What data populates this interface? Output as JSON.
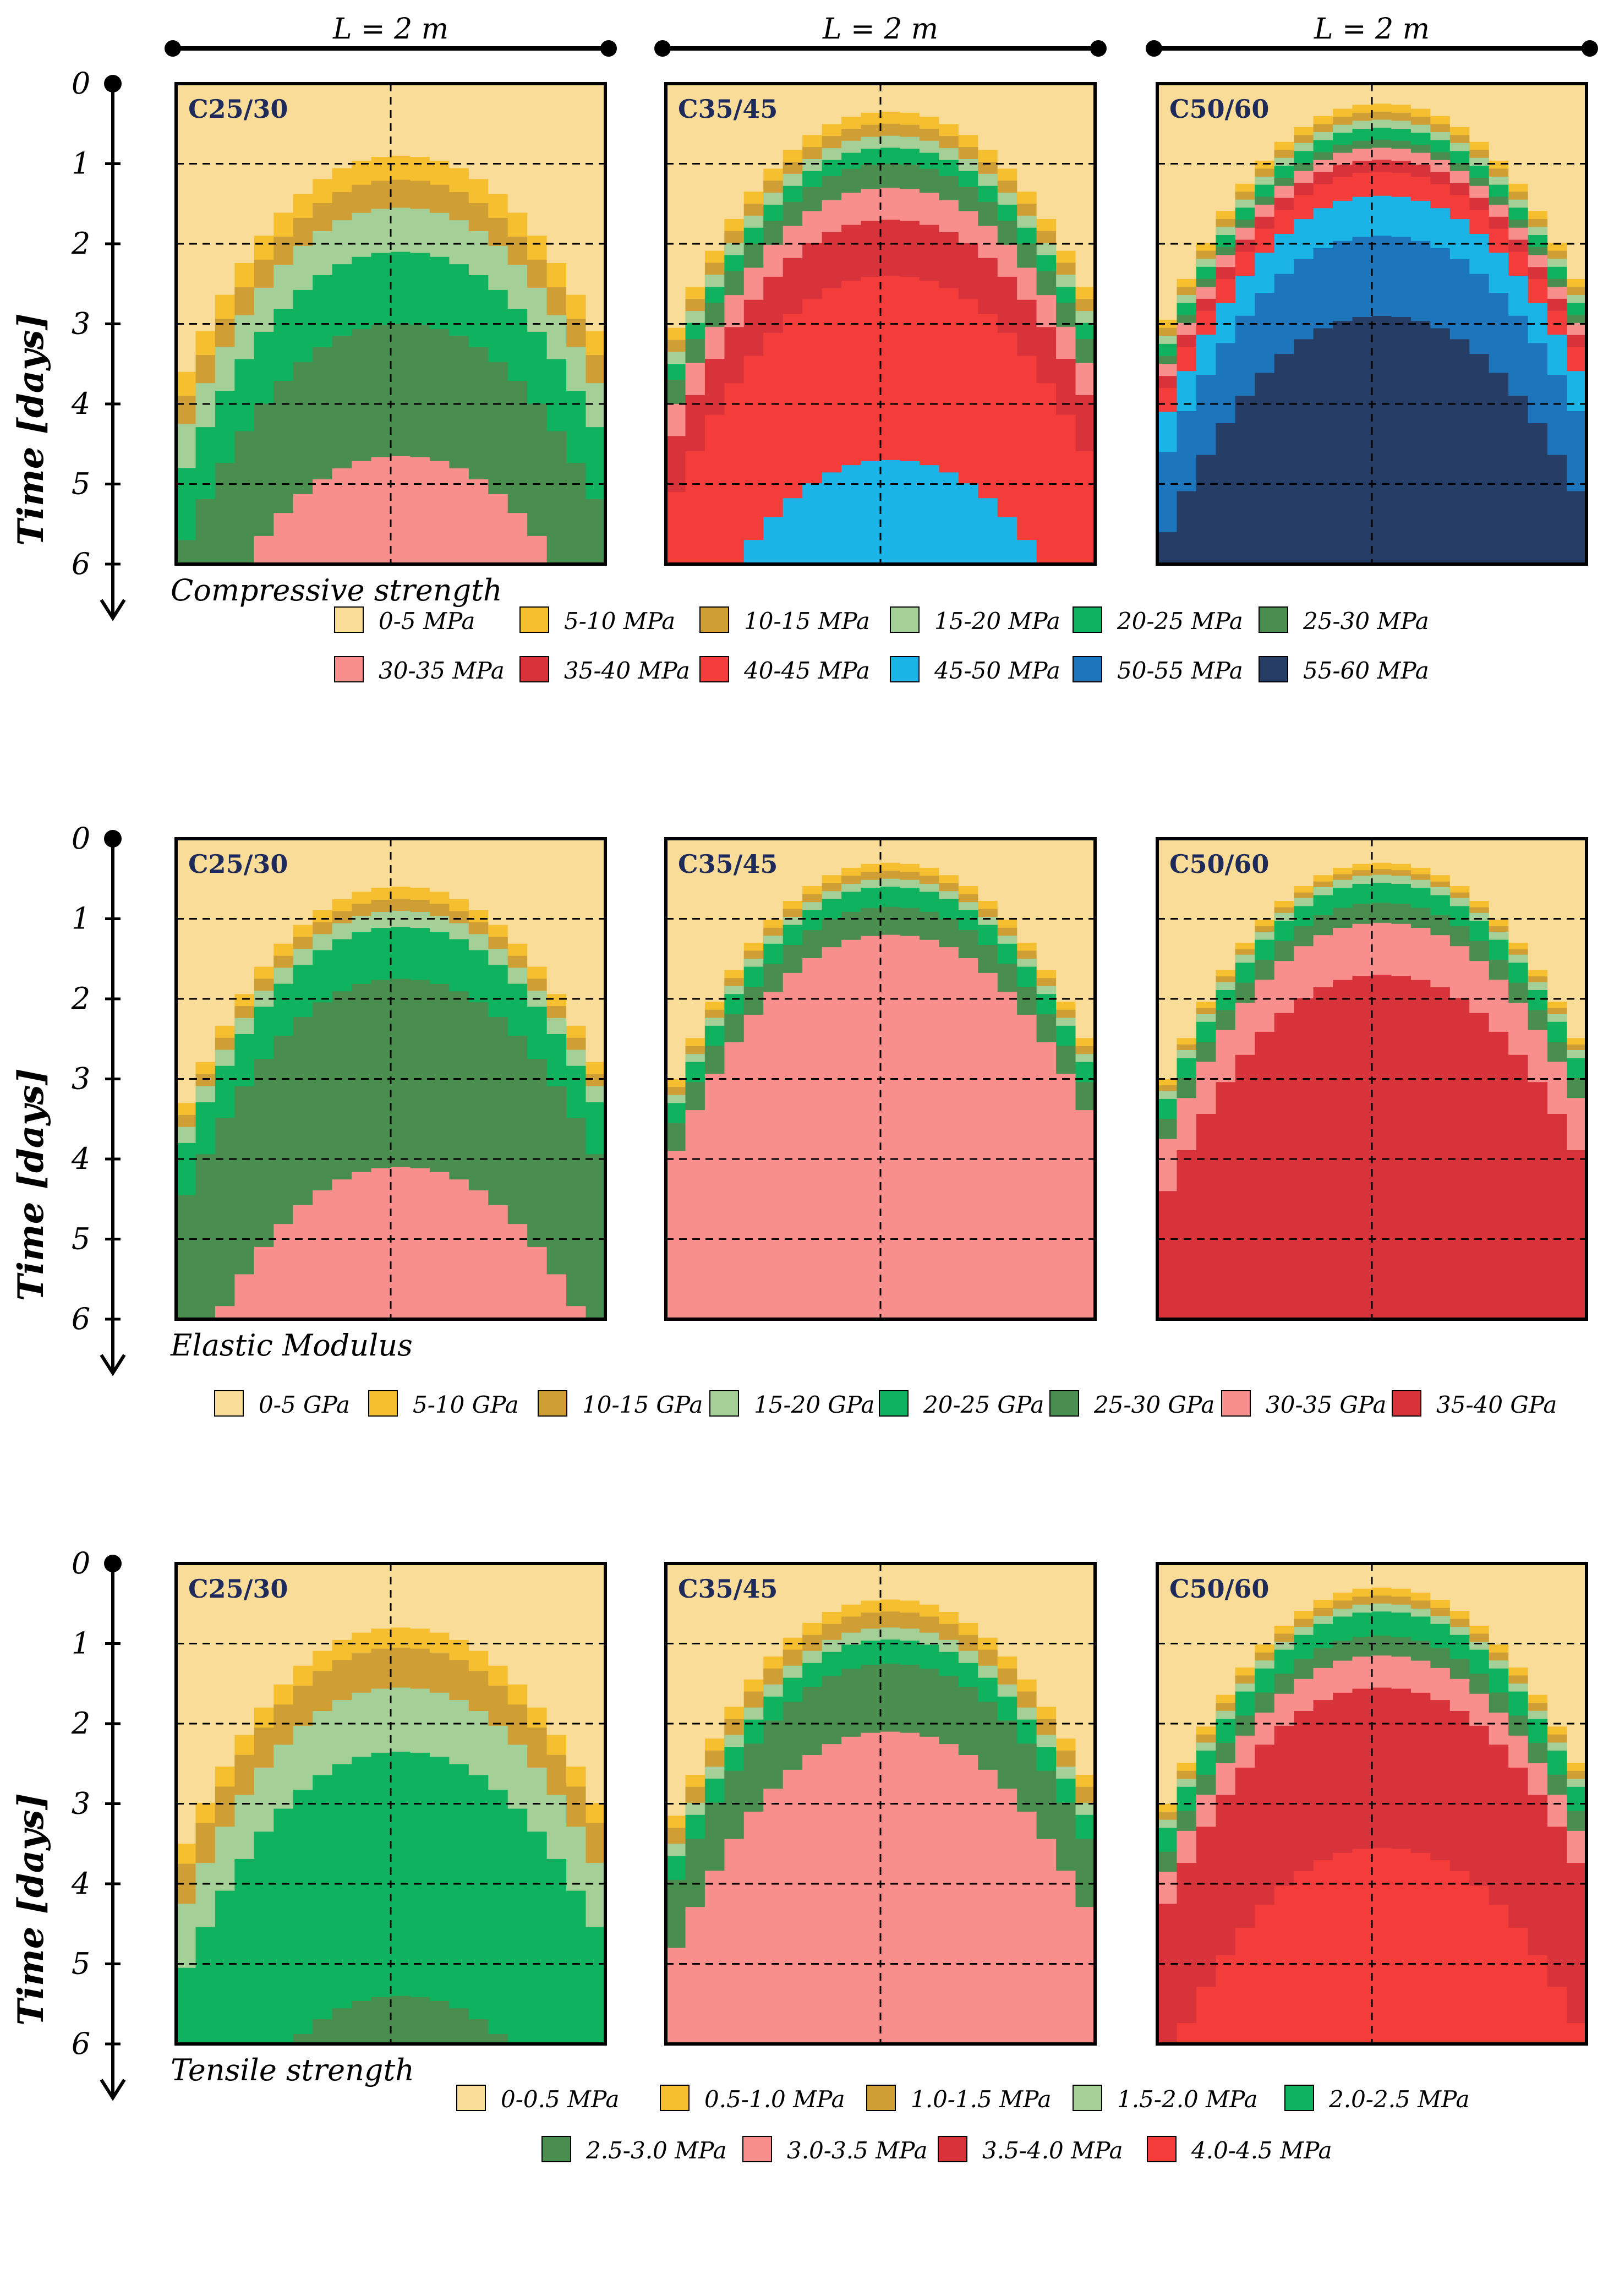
{
  "figure": {
    "length_label": "L = 2 m",
    "time_axis_title": "Time [days]",
    "time_ticks": [
      "0",
      "1",
      "2",
      "3",
      "4",
      "5",
      "6"
    ],
    "palette": {
      "p_cream": "#f9dc98",
      "p_yellow": "#f5bf2f",
      "p_gold": "#cf9f35",
      "p_lgreen": "#a4cf96",
      "p_green": "#0fb25e",
      "p_dgreen": "#4a8e4f",
      "p_pink": "#f88f8d",
      "p_dred": "#d8333a",
      "p_red": "#f43c3a",
      "p_lblue": "#1ab5e6",
      "p_mblue": "#1d76bb",
      "p_navy": "#263d66"
    },
    "rows": [
      {
        "title": "Compressive strength",
        "panels": [
          {
            "label": "C25/30",
            "layers": [
              {
                "color": "p_yellow",
                "start": 0.9
              },
              {
                "color": "p_gold",
                "start": 1.2
              },
              {
                "color": "p_lgreen",
                "start": 1.55
              },
              {
                "color": "p_green",
                "start": 2.1
              },
              {
                "color": "p_dgreen",
                "start": 3.0
              },
              {
                "color": "p_pink",
                "start": 4.65
              }
            ]
          },
          {
            "label": "C35/45",
            "layers": [
              {
                "color": "p_yellow",
                "start": 0.35
              },
              {
                "color": "p_gold",
                "start": 0.5
              },
              {
                "color": "p_lgreen",
                "start": 0.65
              },
              {
                "color": "p_green",
                "start": 0.8
              },
              {
                "color": "p_dgreen",
                "start": 1.0
              },
              {
                "color": "p_pink",
                "start": 1.3
              },
              {
                "color": "p_dred",
                "start": 1.7
              },
              {
                "color": "p_red",
                "start": 2.4
              },
              {
                "color": "p_lblue",
                "start": 4.7
              }
            ]
          },
          {
            "label": "C50/60",
            "layers": [
              {
                "color": "p_yellow",
                "start": 0.25
              },
              {
                "color": "p_gold",
                "start": 0.35
              },
              {
                "color": "p_lgreen",
                "start": 0.45
              },
              {
                "color": "p_green",
                "start": 0.55
              },
              {
                "color": "p_dgreen",
                "start": 0.7
              },
              {
                "color": "p_pink",
                "start": 0.8
              },
              {
                "color": "p_dred",
                "start": 0.95
              },
              {
                "color": "p_red",
                "start": 1.1
              },
              {
                "color": "p_lblue",
                "start": 1.4
              },
              {
                "color": "p_mblue",
                "start": 1.9
              },
              {
                "color": "p_navy",
                "start": 2.9
              }
            ]
          }
        ],
        "legend": {
          "rows": [
            [
              {
                "color": "p_cream",
                "label": "0-5 MPa"
              },
              {
                "color": "p_yellow",
                "label": "5-10 MPa"
              },
              {
                "color": "p_gold",
                "label": "10-15 MPa"
              },
              {
                "color": "p_lgreen",
                "label": "15-20 MPa"
              },
              {
                "color": "p_green",
                "label": "20-25 MPa"
              },
              {
                "color": "p_dgreen",
                "label": "25-30 MPa"
              }
            ],
            [
              {
                "color": "p_pink",
                "label": "30-35 MPa"
              },
              {
                "color": "p_dred",
                "label": "35-40 MPa"
              },
              {
                "color": "p_red",
                "label": "40-45 MPa"
              },
              {
                "color": "p_lblue",
                "label": "45-50 MPa"
              },
              {
                "color": "p_mblue",
                "label": "50-55 MPa"
              },
              {
                "color": "p_navy",
                "label": "55-60 MPa"
              }
            ]
          ]
        }
      },
      {
        "title": "Elastic Modulus",
        "panels": [
          {
            "label": "C25/30",
            "layers": [
              {
                "color": "p_yellow",
                "start": 0.6
              },
              {
                "color": "p_gold",
                "start": 0.75
              },
              {
                "color": "p_lgreen",
                "start": 0.9
              },
              {
                "color": "p_green",
                "start": 1.1
              },
              {
                "color": "p_dgreen",
                "start": 1.75
              },
              {
                "color": "p_pink",
                "start": 4.1
              }
            ]
          },
          {
            "label": "C35/45",
            "layers": [
              {
                "color": "p_yellow",
                "start": 0.3
              },
              {
                "color": "p_gold",
                "start": 0.4
              },
              {
                "color": "p_lgreen",
                "start": 0.5
              },
              {
                "color": "p_green",
                "start": 0.6
              },
              {
                "color": "p_dgreen",
                "start": 0.85
              },
              {
                "color": "p_pink",
                "start": 1.2
              }
            ]
          },
          {
            "label": "C50/60",
            "layers": [
              {
                "color": "p_yellow",
                "start": 0.3
              },
              {
                "color": "p_gold",
                "start": 0.38
              },
              {
                "color": "p_lgreen",
                "start": 0.45
              },
              {
                "color": "p_green",
                "start": 0.55
              },
              {
                "color": "p_dgreen",
                "start": 0.8
              },
              {
                "color": "p_pink",
                "start": 1.05
              },
              {
                "color": "p_dred",
                "start": 1.7
              }
            ]
          }
        ],
        "legend": {
          "rows": [
            [
              {
                "color": "p_cream",
                "label": "0-5 GPa"
              },
              {
                "color": "p_yellow",
                "label": "5-10 GPa"
              },
              {
                "color": "p_gold",
                "label": "10-15 GPa"
              },
              {
                "color": "p_lgreen",
                "label": "15-20 GPa"
              },
              {
                "color": "p_green",
                "label": "20-25 GPa"
              },
              {
                "color": "p_dgreen",
                "label": "25-30 GPa"
              },
              {
                "color": "p_pink",
                "label": "30-35 GPa"
              },
              {
                "color": "p_dred",
                "label": "35-40 GPa"
              }
            ]
          ]
        }
      },
      {
        "title": "Tensile strength",
        "panels": [
          {
            "label": "C25/30",
            "layers": [
              {
                "color": "p_yellow",
                "start": 0.8
              },
              {
                "color": "p_gold",
                "start": 1.05
              },
              {
                "color": "p_lgreen",
                "start": 1.55
              },
              {
                "color": "p_green",
                "start": 2.35
              },
              {
                "color": "p_dgreen",
                "start": 5.4
              }
            ]
          },
          {
            "label": "C35/45",
            "layers": [
              {
                "color": "p_yellow",
                "start": 0.45
              },
              {
                "color": "p_gold",
                "start": 0.6
              },
              {
                "color": "p_lgreen",
                "start": 0.8
              },
              {
                "color": "p_green",
                "start": 0.95
              },
              {
                "color": "p_dgreen",
                "start": 1.25
              },
              {
                "color": "p_pink",
                "start": 2.1
              }
            ]
          },
          {
            "label": "C50/60",
            "layers": [
              {
                "color": "p_yellow",
                "start": 0.3
              },
              {
                "color": "p_gold",
                "start": 0.4
              },
              {
                "color": "p_lgreen",
                "start": 0.5
              },
              {
                "color": "p_green",
                "start": 0.6
              },
              {
                "color": "p_dgreen",
                "start": 0.9
              },
              {
                "color": "p_pink",
                "start": 1.15
              },
              {
                "color": "p_dred",
                "start": 1.55
              },
              {
                "color": "p_red",
                "start": 3.55
              }
            ]
          }
        ],
        "legend": {
          "rows": [
            [
              {
                "color": "p_cream",
                "label": "0-0.5 MPa"
              },
              {
                "color": "p_yellow",
                "label": "0.5-1.0 MPa"
              },
              {
                "color": "p_gold",
                "label": "1.0-1.5 MPa"
              },
              {
                "color": "p_lgreen",
                "label": "1.5-2.0 MPa"
              },
              {
                "color": "p_green",
                "label": "2.0-2.5 MPa"
              }
            ],
            [
              {
                "color": "p_dgreen",
                "label": "2.5-3.0 MPa"
              },
              {
                "color": "p_pink",
                "label": "3.0-3.5 MPa"
              },
              {
                "color": "p_dred",
                "label": "3.5-4.0 MPa"
              },
              {
                "color": "p_red",
                "label": "4.0-4.5 MPa"
              }
            ]
          ]
        }
      }
    ]
  }
}
